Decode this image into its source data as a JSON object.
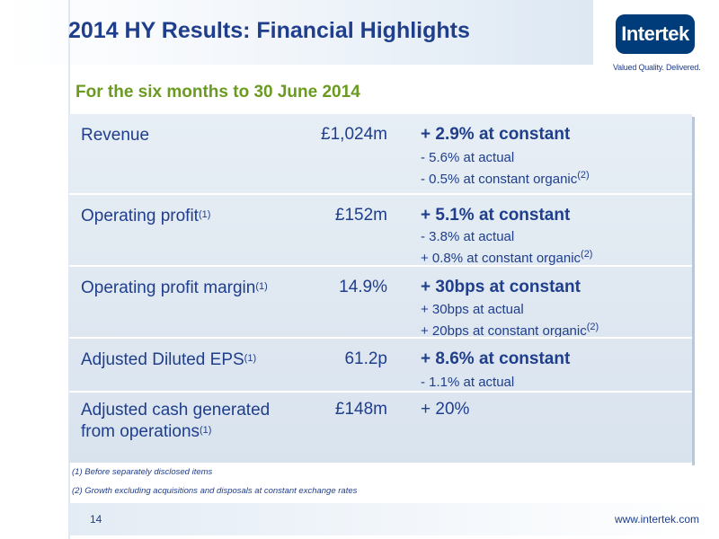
{
  "title": "2014 HY Results: Financial Highlights",
  "logo": {
    "name": "Intertek",
    "tagline": "Valued Quality. Delivered."
  },
  "subtitle": "For the six months to 30 June 2014",
  "rows": [
    {
      "label": "Revenue",
      "label_note": "",
      "value": "£1,024m",
      "headline": "+ 2.9% at constant",
      "details": [
        {
          "text": "- 5.6% at actual",
          "note": ""
        },
        {
          "text": "- 0.5% at constant organic",
          "note": "(2)"
        }
      ]
    },
    {
      "label": "Operating profit",
      "label_note": "(1)",
      "value": "£152m",
      "headline": "+ 5.1% at constant",
      "details": [
        {
          "text": "- 3.8% at actual",
          "note": ""
        },
        {
          "text": "+ 0.8% at constant organic",
          "note": "(2)"
        }
      ]
    },
    {
      "label": "Operating profit margin",
      "label_note": "(1)",
      "value": "14.9%",
      "headline": "+ 30bps at constant",
      "details": [
        {
          "text": "+ 30bps at actual",
          "note": ""
        },
        {
          "text": "+ 20bps at constant organic",
          "note": "(2)"
        }
      ]
    },
    {
      "label": "Adjusted Diluted EPS",
      "label_note": "(1)",
      "value": "61.2p",
      "headline": "+ 8.6% at constant",
      "details": [
        {
          "text": "- 1.1% at actual",
          "note": ""
        }
      ]
    },
    {
      "label_line1": "Adjusted cash generated",
      "label_line2": "from operations",
      "label_note": "(1)",
      "value": "£148m",
      "headline": "+ 20%",
      "details": []
    }
  ],
  "footnotes": [
    "(1)   Before separately disclosed items",
    "(2)   Growth excluding acquisitions and disposals at constant exchange rates"
  ],
  "footer": {
    "page_number": "14",
    "website": "www.intertek.com"
  }
}
